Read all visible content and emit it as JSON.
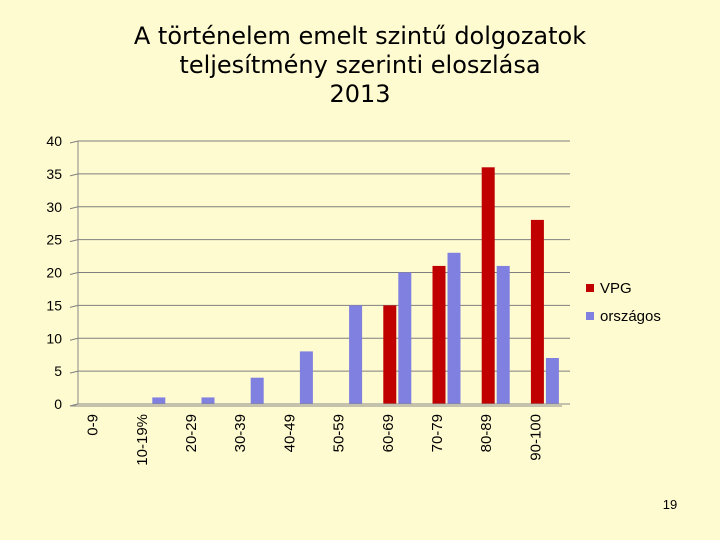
{
  "title_lines": [
    "A történelem emelt szintű dolgozatok",
    "teljesítmény szerinti eloszlása",
    "2013"
  ],
  "page_number": "19",
  "colors": {
    "VPG": "#c00000",
    "orszagos": "#8080e0",
    "background": "#fffbd0"
  },
  "chart_data": {
    "type": "bar",
    "title": "A történelem emelt szintű dolgozatok teljesítmény szerinti eloszlása 2013",
    "categories": [
      "0-9",
      "10-19%",
      "20-29",
      "30-39",
      "40-49",
      "50-59",
      "60-69",
      "70-79",
      "80-89",
      "90-100"
    ],
    "series": [
      {
        "name": "VPG",
        "color": "#c00000",
        "values": [
          0,
          0,
          0,
          0,
          0,
          0,
          15,
          21,
          36,
          28
        ]
      },
      {
        "name": "országos",
        "color": "#8080e0",
        "values": [
          0,
          1,
          1,
          4,
          8,
          15,
          20,
          23,
          21,
          7
        ]
      }
    ],
    "ylim": [
      0,
      40
    ],
    "yticks": [
      0,
      5,
      10,
      15,
      20,
      25,
      30,
      35,
      40
    ],
    "xlabel": "",
    "ylabel": "",
    "grid": true,
    "legend_position": "right"
  }
}
